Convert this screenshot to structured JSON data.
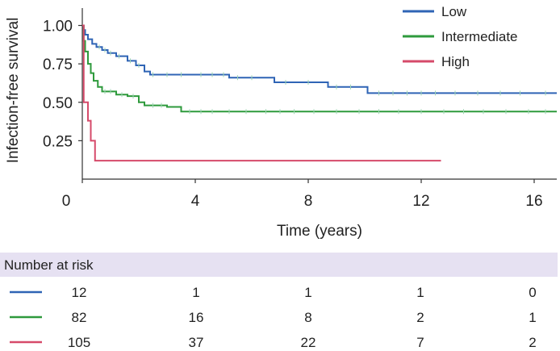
{
  "chart_data": {
    "type": "line",
    "subtype": "kaplan-meier step",
    "title": "",
    "xlabel": "Time (years)",
    "ylabel": "Infection-free survival",
    "xlim": [
      0,
      16.8
    ],
    "ylim": [
      0,
      1.05
    ],
    "x_ticks": [
      0,
      4,
      8,
      12,
      16
    ],
    "y_ticks": [
      0.25,
      0.5,
      0.75,
      1.0
    ],
    "x_tick_labels": [
      "0",
      "4",
      "8",
      "12",
      "16"
    ],
    "y_tick_labels": [
      "0.25",
      "0.50",
      "0.75",
      "1.00"
    ],
    "legend_position": "top-right",
    "grid": false,
    "series": [
      {
        "name": "Low",
        "color": "#2f64b5",
        "censor_color": "#9fd6b5",
        "steps": [
          [
            0,
            1.0
          ],
          [
            0.05,
            0.97
          ],
          [
            0.1,
            0.94
          ],
          [
            0.2,
            0.91
          ],
          [
            0.35,
            0.88
          ],
          [
            0.5,
            0.86
          ],
          [
            0.7,
            0.84
          ],
          [
            0.9,
            0.82
          ],
          [
            1.2,
            0.8
          ],
          [
            1.6,
            0.77
          ],
          [
            1.9,
            0.74
          ],
          [
            2.2,
            0.7
          ],
          [
            2.4,
            0.68
          ],
          [
            4.0,
            0.68
          ],
          [
            5.2,
            0.66
          ],
          [
            6.5,
            0.66
          ],
          [
            6.8,
            0.63
          ],
          [
            8.6,
            0.63
          ],
          [
            8.7,
            0.6
          ],
          [
            10.0,
            0.6
          ],
          [
            10.1,
            0.56
          ],
          [
            16.8,
            0.56
          ]
        ],
        "censor_times": [
          0.6,
          0.8,
          1.0,
          1.3,
          1.7,
          2.0,
          2.5,
          3.0,
          3.5,
          4.2,
          4.6,
          5.0,
          5.5,
          6.0,
          7.2,
          8.0,
          9.0,
          9.5,
          10.5,
          11.0,
          11.5,
          12.0,
          12.5,
          13.2,
          14.0,
          14.8,
          15.5,
          16.4
        ],
        "end_time": 16.8
      },
      {
        "name": "Intermediate",
        "color": "#2e9a3c",
        "censor_color": "#9fd6b5",
        "steps": [
          [
            0,
            1.0
          ],
          [
            0.05,
            0.9
          ],
          [
            0.1,
            0.83
          ],
          [
            0.2,
            0.75
          ],
          [
            0.3,
            0.69
          ],
          [
            0.4,
            0.64
          ],
          [
            0.55,
            0.6
          ],
          [
            0.7,
            0.57
          ],
          [
            1.2,
            0.55
          ],
          [
            1.6,
            0.54
          ],
          [
            2.0,
            0.5
          ],
          [
            2.2,
            0.48
          ],
          [
            3.0,
            0.47
          ],
          [
            3.5,
            0.44
          ],
          [
            16.8,
            0.44
          ]
        ],
        "censor_times": [
          0.8,
          1.0,
          1.4,
          1.8,
          2.5,
          2.8,
          3.8,
          4.2,
          4.6,
          5.2,
          5.8,
          6.5,
          7.0,
          7.5,
          8.2,
          9.0,
          9.8,
          10.5,
          11.2,
          12.0,
          12.8,
          13.5,
          14.2,
          15.0,
          15.8,
          16.4
        ],
        "end_time": 16.8
      },
      {
        "name": "High",
        "color": "#d64a6a",
        "censor_color": "#d64a6a",
        "steps": [
          [
            0,
            1.0
          ],
          [
            0.05,
            0.5
          ],
          [
            0.2,
            0.38
          ],
          [
            0.3,
            0.25
          ],
          [
            0.45,
            0.12
          ],
          [
            12.7,
            0.12
          ]
        ],
        "censor_times": [],
        "end_time": 12.7
      }
    ],
    "risk_table": {
      "header": "Number at risk",
      "time_points": [
        0,
        4,
        8,
        12,
        16
      ],
      "rows": [
        {
          "name": "Low",
          "color": "#2f64b5",
          "values": [
            12,
            1,
            1,
            1,
            0
          ]
        },
        {
          "name": "Intermediate",
          "color": "#2e9a3c",
          "values": [
            82,
            16,
            8,
            2,
            1
          ]
        },
        {
          "name": "High",
          "color": "#d64a6a",
          "values": [
            105,
            37,
            22,
            7,
            2
          ]
        }
      ]
    }
  }
}
